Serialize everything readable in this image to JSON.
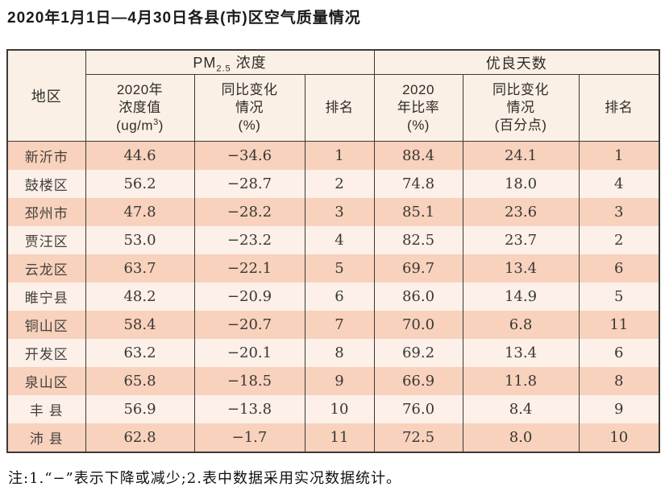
{
  "page": {
    "title": "2020年1月1日—4月30日各县(市)区空气质量情况",
    "footnote": "注:1.“−”表示下降或减少;2.表中数据采用实况数据统计。"
  },
  "table": {
    "header": {
      "region": "地区",
      "pm_group": {
        "prefix": "PM",
        "sub": "2.5",
        "suffix": " 浓度"
      },
      "days_group": "优良天数",
      "pm_value": {
        "l1": "2020年",
        "l2": "浓度值",
        "unit_prefix": "(ug/m",
        "unit_sup": "3",
        "unit_suffix": ")"
      },
      "pm_change": [
        "同比变化",
        "情况",
        "(%)"
      ],
      "pm_rank": "排名",
      "days_rate": [
        "2020",
        "年比率",
        "(%)"
      ],
      "days_change": [
        "同比变化",
        "情况",
        "(百分点)"
      ],
      "days_rank": "排名"
    },
    "rows": [
      {
        "region": "新沂市",
        "pm_value": "44.6",
        "pm_change": "−34.6",
        "pm_rank": "1",
        "days_rate": "88.4",
        "days_change": "24.1",
        "days_rank": "1"
      },
      {
        "region": "鼓楼区",
        "pm_value": "56.2",
        "pm_change": "−28.7",
        "pm_rank": "2",
        "days_rate": "74.8",
        "days_change": "18.0",
        "days_rank": "4"
      },
      {
        "region": "邳州市",
        "pm_value": "47.8",
        "pm_change": "−28.2",
        "pm_rank": "3",
        "days_rate": "85.1",
        "days_change": "23.6",
        "days_rank": "3"
      },
      {
        "region": "贾汪区",
        "pm_value": "53.0",
        "pm_change": "−23.2",
        "pm_rank": "4",
        "days_rate": "82.5",
        "days_change": "23.7",
        "days_rank": "2"
      },
      {
        "region": "云龙区",
        "pm_value": "63.7",
        "pm_change": "−22.1",
        "pm_rank": "5",
        "days_rate": "69.7",
        "days_change": "13.4",
        "days_rank": "6"
      },
      {
        "region": "睢宁县",
        "pm_value": "48.2",
        "pm_change": "−20.9",
        "pm_rank": "6",
        "days_rate": "86.0",
        "days_change": "14.9",
        "days_rank": "5"
      },
      {
        "region": "铜山区",
        "pm_value": "58.4",
        "pm_change": "−20.7",
        "pm_rank": "7",
        "days_rate": "70.0",
        "days_change": "6.8",
        "days_rank": "11"
      },
      {
        "region": "开发区",
        "pm_value": "63.2",
        "pm_change": "−20.1",
        "pm_rank": "8",
        "days_rate": "69.2",
        "days_change": "13.4",
        "days_rank": "6"
      },
      {
        "region": "泉山区",
        "pm_value": "65.8",
        "pm_change": "−18.5",
        "pm_rank": "9",
        "days_rate": "66.9",
        "days_change": "11.8",
        "days_rank": "8"
      },
      {
        "region": "丰 县",
        "pm_value": "56.9",
        "pm_change": "−13.8",
        "pm_rank": "10",
        "days_rate": "76.0",
        "days_change": "8.4",
        "days_rank": "9"
      },
      {
        "region": "沛 县",
        "pm_value": "62.8",
        "pm_change": "−1.7",
        "pm_rank": "11",
        "days_rate": "72.5",
        "days_change": "8.0",
        "days_rank": "10"
      }
    ]
  }
}
